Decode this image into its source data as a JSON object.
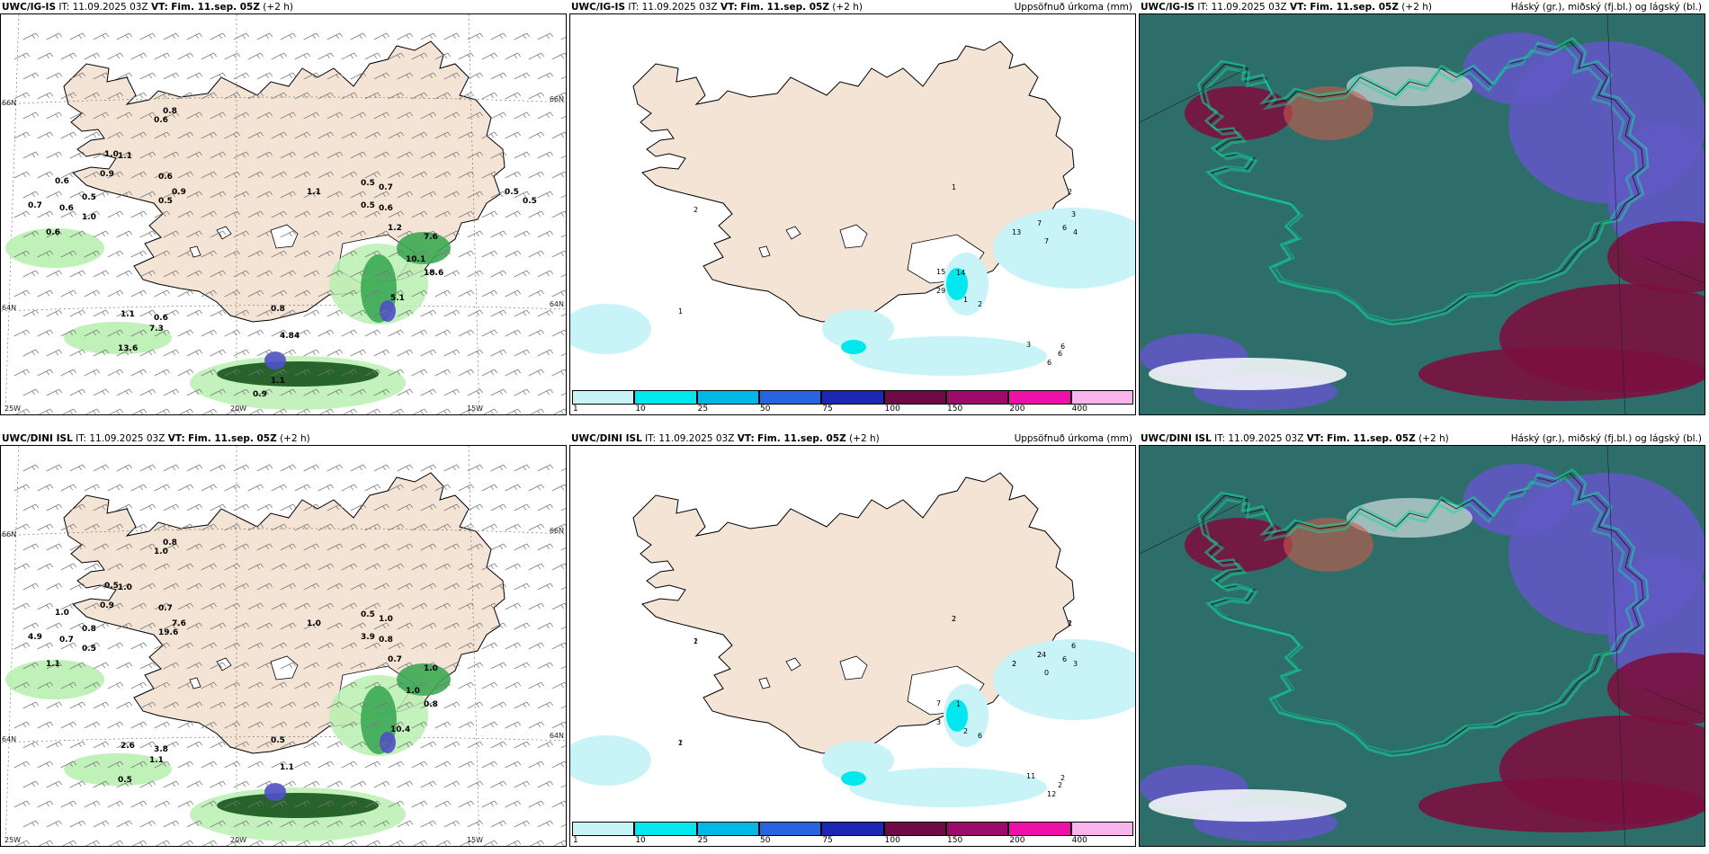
{
  "panels": [
    {
      "id": "top-left",
      "model": "UWC/IG-IS",
      "it_prefix": "IT:",
      "it": "11.09.2025 03Z",
      "vt_prefix": "VT:",
      "vt": "Fim. 11.sep. 05Z",
      "lead": "(+2 h)",
      "right_title": "",
      "kind": "wind-precip",
      "lats": [
        "66N",
        "64N"
      ],
      "lons": [
        "25W",
        "20W",
        "15W"
      ],
      "labels": [
        "0.8",
        "0.6",
        "1.0",
        "1.1",
        "0.9",
        "0.6",
        "0.5",
        "0.9",
        "0.6",
        "0.7",
        "0.6",
        "1.0",
        "0.6",
        "1.1",
        "0.5",
        "0.5",
        "0.6",
        "0.5",
        "0.7",
        "1.2",
        "7.6",
        "10.1",
        "18.6",
        "5.1",
        "1.1",
        "0.6",
        "7.3",
        "13.6",
        "0.8",
        "4.84",
        "1.1",
        "0.9",
        "0.5",
        "0.5"
      ]
    },
    {
      "id": "top-mid",
      "model": "UWC/IG-IS",
      "it_prefix": "IT:",
      "it": "11.09.2025 03Z",
      "vt_prefix": "VT:",
      "vt": "Fim. 11.sep. 05Z",
      "lead": "(+2 h)",
      "right_title": "Uppsöfnuð úrkoma (mm)",
      "kind": "accum",
      "labels": [
        "1",
        "2",
        "1",
        "2",
        "13",
        "7",
        "7",
        "6",
        "3",
        "4",
        "3",
        "6",
        "6",
        "6",
        "1",
        "2",
        "14",
        "15",
        "29"
      ]
    },
    {
      "id": "top-right",
      "model": "UWC/IG-IS",
      "it_prefix": "IT:",
      "it": "11.09.2025 03Z",
      "vt_prefix": "VT:",
      "vt": "Fim. 11.sep. 05Z",
      "lead": "(+2 h)",
      "right_title": "Háský (gr.), miðský (fj.bl.) og lágský (bl.)",
      "kind": "cloud"
    },
    {
      "id": "bottom-left",
      "model": "UWC/DINI ISL",
      "it_prefix": "IT:",
      "it": "11.09.2025 03Z",
      "vt_prefix": "VT:",
      "vt": "Fim. 11.sep. 05Z",
      "lead": "(+2 h)",
      "right_title": "",
      "kind": "wind-precip",
      "lats": [
        "66N",
        "64N"
      ],
      "lons": [
        "25W",
        "20W",
        "15W"
      ],
      "labels": [
        "0.8",
        "1.0",
        "0.5",
        "1.0",
        "0.9",
        "1.0",
        "0.8",
        "7.6",
        "0.7",
        "4.9",
        "0.7",
        "0.5",
        "1.1",
        "1.0",
        "19.6",
        "3.9",
        "0.8",
        "0.5",
        "1.0",
        "0.7",
        "1.0",
        "1.0",
        "0.8",
        "10.4",
        "2.6",
        "3.8",
        "1.1",
        "0.5",
        "0.5",
        "1.1"
      ]
    },
    {
      "id": "bottom-mid",
      "model": "UWC/DINI ISL",
      "it_prefix": "IT:",
      "it": "11.09.2025 03Z",
      "vt_prefix": "VT:",
      "vt": "Fim. 11.sep. 05Z",
      "lead": "(+2 h)",
      "right_title": "Uppsöfnuð úrkoma (mm)",
      "kind": "accum",
      "labels": [
        "1",
        "2",
        "2",
        "2",
        "2",
        "2",
        "0",
        "6",
        "6",
        "3",
        "11",
        "12",
        "2",
        "2",
        "2",
        "6",
        "1",
        "7",
        "3",
        "2",
        "1",
        "2",
        "1",
        "2",
        "24"
      ]
    },
    {
      "id": "bottom-right",
      "model": "UWC/DINI ISL",
      "it_prefix": "IT:",
      "it": "11.09.2025 03Z",
      "vt_prefix": "VT:",
      "vt": "Fim. 11.sep. 05Z",
      "lead": "(+2 h)",
      "right_title": "Háský (gr.), miðský (fj.bl.) og lágský (bl.)",
      "kind": "cloud"
    }
  ],
  "colorbar": {
    "ticks": [
      "1",
      "10",
      "25",
      "50",
      "75",
      "100",
      "150",
      "200",
      "400"
    ],
    "colors": [
      "#c8f4f8",
      "#00e8ee",
      "#00b8e8",
      "#2864e0",
      "#1c28b4",
      "#6e0a46",
      "#9c0a6a",
      "#ee10a8",
      "#f8b4ec"
    ]
  },
  "colors": {
    "land": "#f3e4d6",
    "sea": "#ffffff",
    "precip_light": "#b8f0b0",
    "precip_mid": "#3ca854",
    "precip_dark": "#0c4a10",
    "cloud_high": "#2e6e6a",
    "cloud_mid": "#6058c4",
    "cloud_low": "#7a1040",
    "cloud_edge": "#14d8a0"
  }
}
